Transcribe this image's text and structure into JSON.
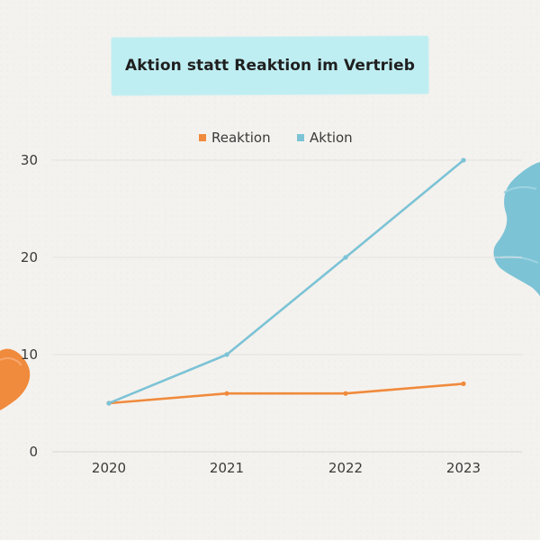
{
  "chart_data": {
    "type": "line",
    "title": "Aktion statt Reaktion im Vertrieb",
    "xlabel": "",
    "ylabel": "",
    "categories": [
      "2020",
      "2021",
      "2022",
      "2023"
    ],
    "series": [
      {
        "name": "Reaktion",
        "values": [
          5,
          6,
          6,
          7
        ],
        "color": "#f08a3c"
      },
      {
        "name": "Aktion",
        "values": [
          5,
          10,
          20,
          30
        ],
        "color": "#7cc3d6"
      }
    ],
    "ylim": [
      0,
      30
    ],
    "yticks": [
      "0",
      "10",
      "20",
      "30"
    ],
    "grid": true,
    "legend": "top-center"
  },
  "colors": {
    "background": "#f4f2ee",
    "title_band": "#bfeef2",
    "orange_stroke": "#f08a3c",
    "teal_stroke": "#7cc3d6"
  }
}
